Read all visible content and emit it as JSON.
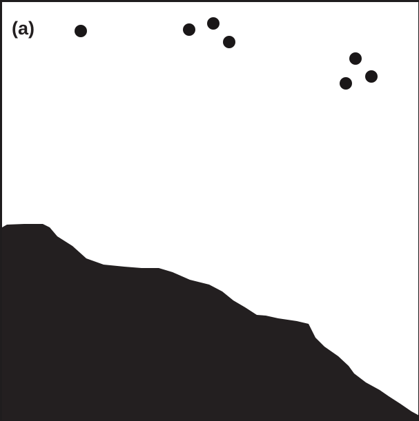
{
  "panel": {
    "label": "(a)"
  },
  "colors": {
    "background": "#ffffff",
    "frame": "#1f1d1e",
    "terrain": "#231f20",
    "particles": "#1a1718"
  },
  "particles": {
    "count": 7
  }
}
